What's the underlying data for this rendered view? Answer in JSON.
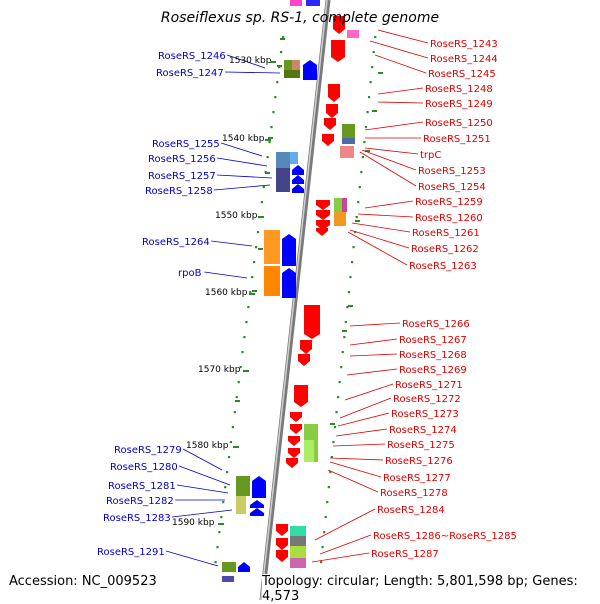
{
  "title": "Roseiflexus sp. RS-1, complete genome",
  "accession": "Accession: NC_009523",
  "topology": "Topology: circular; Length: 5,801,598 bp; Genes: 4,573",
  "colors": {
    "forward_label": "#0000cc",
    "reverse_label": "#dd0000",
    "forward_gene": "#0000ff",
    "reverse_gene": "#ff0000",
    "tick": "#2a8a2a",
    "backbone": "#888888"
  },
  "kbp_ticks": [
    "1530 kbp",
    "1540 kbp",
    "1550 kbp",
    "1560 kbp",
    "1570 kbp",
    "1580 kbp",
    "1590 kbp"
  ],
  "left_labels": [
    "RoseRS_1246",
    "RoseRS_1247",
    "RoseRS_1255",
    "RoseRS_1256",
    "RoseRS_1257",
    "RoseRS_1258",
    "RoseRS_1264",
    "rpoB",
    "RoseRS_1279",
    "RoseRS_1280",
    "RoseRS_1281",
    "RoseRS_1282",
    "RoseRS_1283",
    "RoseRS_1291"
  ],
  "right_labels": [
    "RoseRS_1243",
    "RoseRS_1244",
    "RoseRS_1245",
    "RoseRS_1248",
    "RoseRS_1249",
    "RoseRS_1250",
    "RoseRS_1251",
    "trpC",
    "RoseRS_1253",
    "RoseRS_1254",
    "RoseRS_1259",
    "RoseRS_1260",
    "RoseRS_1261",
    "RoseRS_1262",
    "RoseRS_1263",
    "RoseRS_1266",
    "RoseRS_1267",
    "RoseRS_1268",
    "RoseRS_1269",
    "RoseRS_1271",
    "RoseRS_1272",
    "RoseRS_1273",
    "RoseRS_1274",
    "RoseRS_1275",
    "RoseRS_1276",
    "RoseRS_1277",
    "RoseRS_1278",
    "RoseRS_1284",
    "RoseRS_1286~RoseRS_1285",
    "RoseRS_1287"
  ]
}
